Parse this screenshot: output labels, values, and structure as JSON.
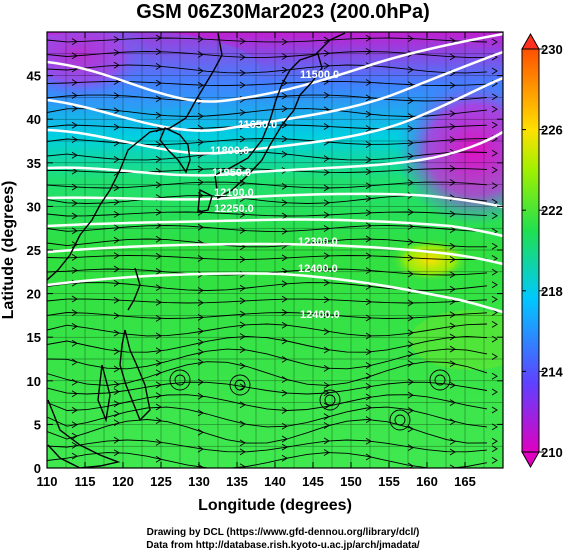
{
  "title": "GSM 06Z30Mar2023 (200.0hPa)",
  "map": {
    "xlabel": "Longitude (degrees)",
    "ylabel": "Latitude  (degrees)",
    "lon_ticks": [
      "110",
      "115",
      "120",
      "125",
      "130",
      "135",
      "140",
      "145",
      "150",
      "155",
      "160",
      "165"
    ],
    "lat_ticks": [
      "0",
      "5",
      "10",
      "15",
      "20",
      "25",
      "30",
      "35",
      "40",
      "45"
    ],
    "lon_range": [
      110,
      170
    ],
    "lat_range": [
      0,
      50
    ],
    "contour_labels": [
      "11500.0",
      "11650.0",
      "11800.0",
      "11950.0",
      "12100.0",
      "12250.0",
      "12300.0",
      "12400.0"
    ]
  },
  "colorbar": {
    "ticks": [
      "210",
      "214",
      "218",
      "222",
      "226",
      "230"
    ],
    "range": [
      210,
      230
    ],
    "colors": [
      "#e000c0",
      "#6040ff",
      "#00c8ff",
      "#20e050",
      "#a0f000",
      "#ffe000",
      "#ff5000"
    ]
  },
  "credits": {
    "line1": "Drawing by DCL (https://www.gfd-dennou.org/library/dcl/)",
    "line2": "Data from http://database.rish.kyoto-u.ac.jp/arch/jmadata/"
  }
}
